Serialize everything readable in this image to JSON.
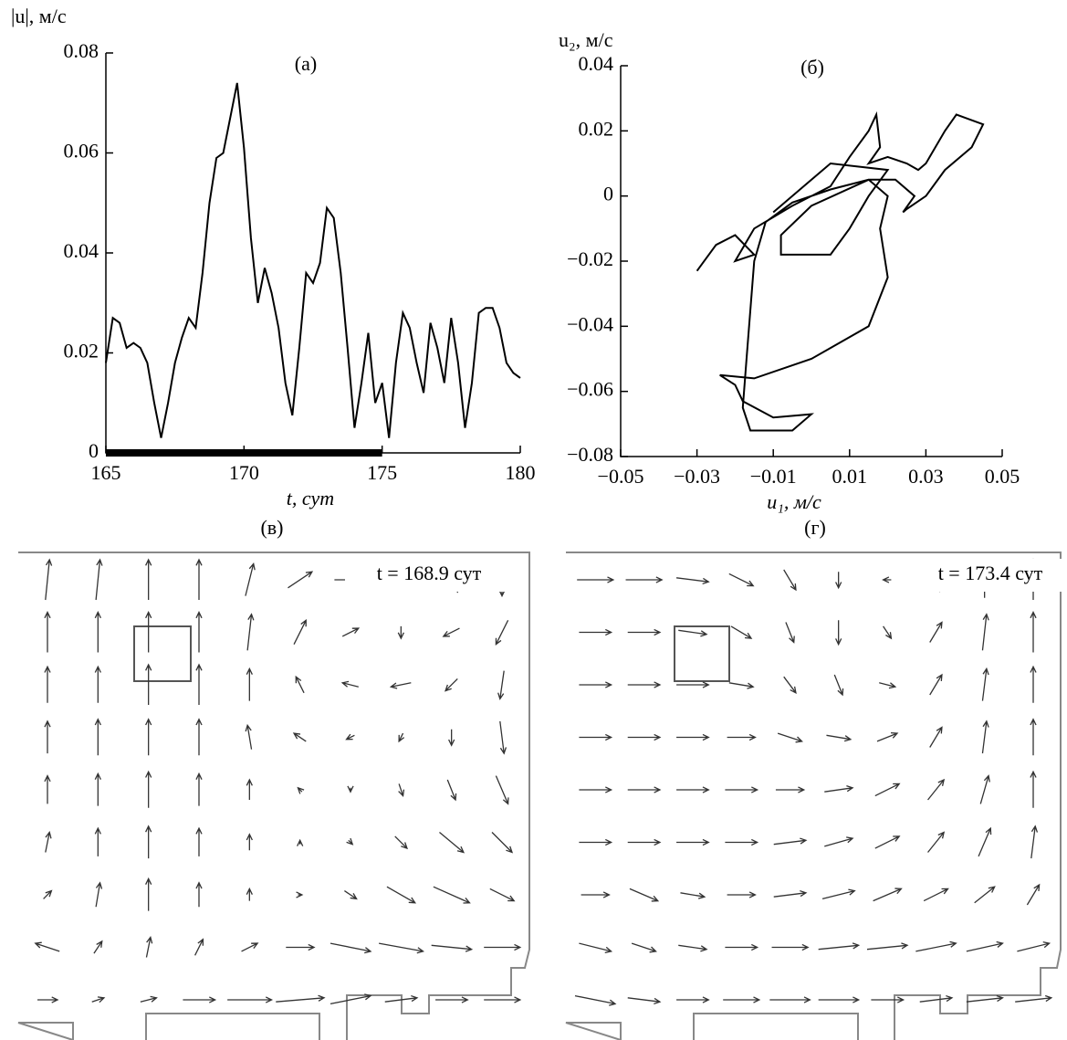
{
  "chart_data": [
    {
      "type": "line",
      "title": "(а)",
      "y_label": "|u|, м/с",
      "x_label": "t, сут",
      "x": [
        165,
        165.25,
        165.5,
        165.75,
        166,
        166.25,
        166.5,
        166.75,
        167,
        167.25,
        167.5,
        167.75,
        168,
        168.25,
        168.5,
        168.75,
        169,
        169.25,
        169.5,
        169.75,
        170,
        170.25,
        170.5,
        170.75,
        171,
        171.25,
        171.5,
        171.75,
        172,
        172.25,
        172.5,
        172.75,
        173,
        173.25,
        173.5,
        173.75,
        174,
        174.25,
        174.5,
        174.75,
        175,
        175.25,
        175.5,
        175.75,
        176,
        176.25,
        176.5,
        176.75,
        177,
        177.25,
        177.5,
        177.75,
        178,
        178.25,
        178.5,
        178.75,
        179,
        179.25,
        179.5,
        179.75,
        180
      ],
      "values": [
        0.018,
        0.027,
        0.026,
        0.021,
        0.022,
        0.021,
        0.018,
        0.01,
        0.003,
        0.01,
        0.018,
        0.023,
        0.027,
        0.025,
        0.036,
        0.05,
        0.059,
        0.06,
        0.067,
        0.074,
        0.061,
        0.043,
        0.03,
        0.037,
        0.032,
        0.025,
        0.014,
        0.0075,
        0.021,
        0.036,
        0.034,
        0.038,
        0.049,
        0.047,
        0.036,
        0.021,
        0.005,
        0.014,
        0.024,
        0.01,
        0.014,
        0.003,
        0.018,
        0.028,
        0.025,
        0.018,
        0.012,
        0.026,
        0.021,
        0.014,
        0.027,
        0.018,
        0.005,
        0.014,
        0.028,
        0.029,
        0.029,
        0.025,
        0.018,
        0.016,
        0.015
      ],
      "color": "#000000",
      "highlight": [
        165,
        175
      ],
      "xlim": [
        165,
        180
      ],
      "xticks": [
        165,
        170,
        175,
        180
      ],
      "ylim": [
        0,
        0.08
      ],
      "yticks": [
        0,
        0.02,
        0.04,
        0.06,
        0.08
      ]
    },
    {
      "type": "line",
      "title": "(б)",
      "y_label": "u₂, м/с",
      "x_label": "u₁, м/с",
      "x": [
        -0.03,
        -0.025,
        -0.02,
        -0.015,
        -0.02,
        -0.015,
        -0.005,
        0.005,
        0.01,
        0.015,
        0.017,
        0.018,
        0.015,
        0.02,
        0.025,
        0.028,
        0.03,
        0.035,
        0.038,
        0.045,
        0.042,
        0.035,
        0.03,
        0.025,
        0.024,
        0.027,
        0.022,
        0.015,
        0.005,
        -0.005,
        -0.012,
        -0.015,
        -0.016,
        -0.017,
        -0.018,
        -0.016,
        -0.005,
        0.0,
        -0.01,
        -0.018,
        -0.02,
        -0.024,
        -0.015,
        0.0,
        0.015,
        0.02,
        0.018,
        0.02,
        0.015,
        0.0,
        -0.008,
        -0.008,
        0.005,
        0.01,
        0.015,
        0.02,
        0.005,
        -0.01
      ],
      "values": [
        -0.023,
        -0.015,
        -0.012,
        -0.018,
        -0.02,
        -0.01,
        -0.003,
        0.003,
        0.012,
        0.02,
        0.025,
        0.015,
        0.01,
        0.012,
        0.01,
        0.008,
        0.01,
        0.02,
        0.025,
        0.022,
        0.015,
        0.008,
        0.0,
        -0.004,
        -0.005,
        0.0,
        0.005,
        0.005,
        0.002,
        -0.002,
        -0.008,
        -0.02,
        -0.035,
        -0.05,
        -0.065,
        -0.072,
        -0.072,
        -0.067,
        -0.068,
        -0.063,
        -0.058,
        -0.055,
        -0.056,
        -0.05,
        -0.04,
        -0.025,
        -0.01,
        0.0,
        0.005,
        -0.003,
        -0.012,
        -0.018,
        -0.018,
        -0.01,
        0.0,
        0.008,
        0.01,
        -0.005
      ],
      "color": "#000000",
      "xlim": [
        -0.05,
        0.05
      ],
      "xticks": [
        {
          "value": -0.05,
          "label": "−0.05"
        },
        {
          "value": -0.03,
          "label": "−0.03"
        },
        {
          "value": -0.01,
          "label": "−0.01"
        },
        0.01,
        0.03,
        0.05
      ],
      "ylim": [
        -0.08,
        0.04
      ],
      "yticks": [
        {
          "value": -0.08,
          "label": "−0.08"
        },
        {
          "value": -0.06,
          "label": "−0.06"
        },
        {
          "value": -0.04,
          "label": "−0.04"
        },
        {
          "value": -0.02,
          "label": "−0.02"
        },
        0,
        0.02,
        0.04
      ]
    },
    {
      "type": "quiver",
      "title": "(в)",
      "annotation": "t = 168.9 сут",
      "color": "#333333",
      "u": [
        [
          0.1,
          0.1,
          0.0,
          0.0,
          0.2,
          0.6,
          0.8,
          0.6,
          0.3,
          0.0
        ],
        [
          0,
          0,
          0,
          0,
          0.1,
          0.3,
          0.4,
          0,
          -0.4,
          -0.3
        ],
        [
          0,
          0,
          0,
          0,
          0,
          -0.2,
          -0.4,
          -0.5,
          -0.3,
          -0.1
        ],
        [
          0,
          0,
          0,
          0,
          -0.1,
          -0.3,
          -0.2,
          -0.1,
          0,
          0.1
        ],
        [
          0,
          0,
          0,
          0,
          0,
          -0.1,
          0,
          0.1,
          0.2,
          0.3
        ],
        [
          0.1,
          0,
          0,
          0,
          0,
          0,
          0.1,
          0.3,
          0.6,
          0.5
        ],
        [
          0.2,
          0.1,
          0,
          0,
          0,
          0.1,
          0.3,
          0.7,
          0.9,
          0.6
        ],
        [
          -0.6,
          0.2,
          0.1,
          0.2,
          0.4,
          0.7,
          1,
          1.1,
          1,
          0.9
        ],
        [
          0.5,
          0.3,
          0.4,
          0.8,
          1.1,
          1.2,
          1,
          0.8,
          0.8,
          0.9
        ]
      ],
      "v": [
        [
          1,
          1,
          1,
          1,
          0.8,
          0.4,
          0,
          -0.4,
          -0.6,
          -0.8
        ],
        [
          1,
          1,
          1,
          1,
          0.9,
          0.6,
          0.2,
          -0.3,
          -0.2,
          -0.6
        ],
        [
          0.9,
          0.9,
          1,
          1,
          0.8,
          0.4,
          0.1,
          -0.1,
          -0.3,
          -0.7
        ],
        [
          0.8,
          0.9,
          0.9,
          0.9,
          0.6,
          0.2,
          -0.1,
          -0.2,
          -0.4,
          -0.8
        ],
        [
          0.7,
          0.8,
          0.9,
          0.8,
          0.5,
          0.1,
          -0.1,
          -0.3,
          -0.5,
          -0.7
        ],
        [
          0.5,
          0.7,
          0.8,
          0.7,
          0.4,
          0.1,
          -0.1,
          -0.3,
          -0.5,
          -0.5
        ],
        [
          0.2,
          0.6,
          0.8,
          0.6,
          0.3,
          0,
          -0.2,
          -0.4,
          -0.4,
          -0.3
        ],
        [
          0.2,
          0.3,
          0.5,
          0.4,
          0.2,
          0,
          -0.2,
          -0.2,
          -0.1,
          0
        ],
        [
          0,
          0.1,
          0.1,
          0,
          0,
          0.1,
          0.2,
          0.1,
          0,
          0
        ]
      ]
    },
    {
      "type": "quiver",
      "title": "(г)",
      "annotation": "t = 173.4 сут",
      "color": "#333333",
      "u": [
        [
          0.9,
          0.9,
          0.8,
          0.6,
          0.3,
          0,
          -0.2,
          -0.2,
          0,
          0
        ],
        [
          0.8,
          0.8,
          0.7,
          0.5,
          0.2,
          0,
          0.2,
          0.3,
          0.1,
          0
        ],
        [
          0.8,
          0.8,
          0.8,
          0.6,
          0.3,
          0.2,
          0.4,
          0.3,
          0.1,
          0
        ],
        [
          0.8,
          0.8,
          0.8,
          0.7,
          0.6,
          0.6,
          0.5,
          0.3,
          0.1,
          0
        ],
        [
          0.8,
          0.8,
          0.8,
          0.8,
          0.7,
          0.7,
          0.6,
          0.4,
          0.2,
          0
        ],
        [
          0.8,
          0.8,
          0.8,
          0.8,
          0.8,
          0.7,
          0.6,
          0.4,
          0.3,
          0.1
        ],
        [
          0.7,
          0.7,
          0.6,
          0.7,
          0.8,
          0.8,
          0.7,
          0.6,
          0.5,
          0.3
        ],
        [
          0.8,
          0.6,
          0.7,
          0.8,
          0.9,
          1,
          1,
          1,
          0.9,
          0.8
        ],
        [
          1,
          0.8,
          0.8,
          0.9,
          1,
          1,
          0.8,
          0.8,
          0.9,
          0.9
        ]
      ],
      "v": [
        [
          0,
          0,
          -0.1,
          -0.3,
          -0.5,
          -0.4,
          0,
          0.6,
          0.9,
          1
        ],
        [
          0,
          0,
          -0.1,
          -0.3,
          -0.5,
          -0.6,
          -0.3,
          0.5,
          0.9,
          1
        ],
        [
          0,
          0,
          0,
          -0.1,
          -0.4,
          -0.5,
          -0.1,
          0.5,
          0.8,
          0.9
        ],
        [
          0,
          0,
          0,
          0,
          -0.2,
          -0.1,
          0.2,
          0.5,
          0.8,
          0.9
        ],
        [
          0,
          0,
          0,
          0,
          0,
          0.1,
          0.3,
          0.5,
          0.7,
          0.9
        ],
        [
          0,
          0,
          0,
          0,
          0.1,
          0.2,
          0.3,
          0.5,
          0.7,
          0.8
        ],
        [
          0,
          -0.3,
          -0.1,
          0,
          0.1,
          0.2,
          0.3,
          0.3,
          0.4,
          0.5
        ],
        [
          -0.2,
          -0.2,
          -0.1,
          0,
          0,
          0.1,
          0.1,
          0.2,
          0.2,
          0.2
        ],
        [
          -0.2,
          -0.1,
          0,
          0,
          0,
          0,
          0,
          0.1,
          0.1,
          0.1
        ]
      ]
    }
  ]
}
